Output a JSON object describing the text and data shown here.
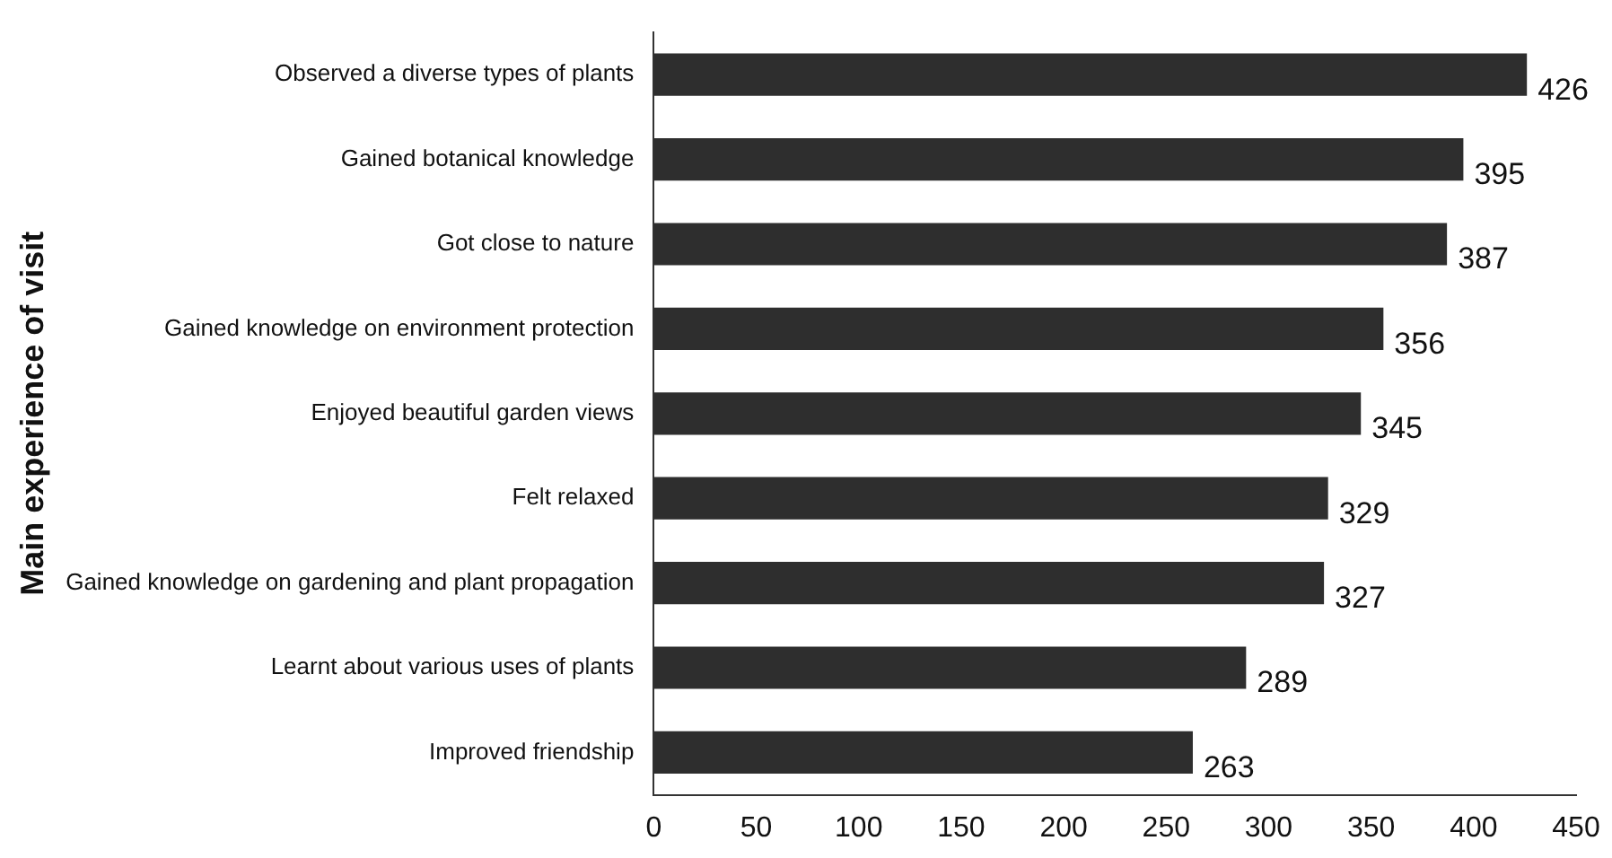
{
  "chart_data": {
    "type": "bar",
    "orientation": "horizontal",
    "ylabel": "Main experience of visit",
    "categories": [
      "Observed a diverse types of plants",
      "Gained botanical knowledge",
      "Got close to nature",
      "Gained knowledge on environment protection",
      "Enjoyed beautiful garden views",
      "Felt relaxed",
      "Gained knowledge on gardening and plant propagation",
      "Learnt about various uses of plants",
      "Improved friendship"
    ],
    "values": [
      426,
      395,
      387,
      356,
      345,
      329,
      327,
      289,
      263
    ],
    "color": "#2e2e2e",
    "xlim": [
      0,
      450
    ],
    "xticks": [
      0,
      50,
      100,
      150,
      200,
      250,
      300,
      350,
      400,
      450
    ],
    "data_labels": true,
    "grid": false,
    "legend": false
  }
}
